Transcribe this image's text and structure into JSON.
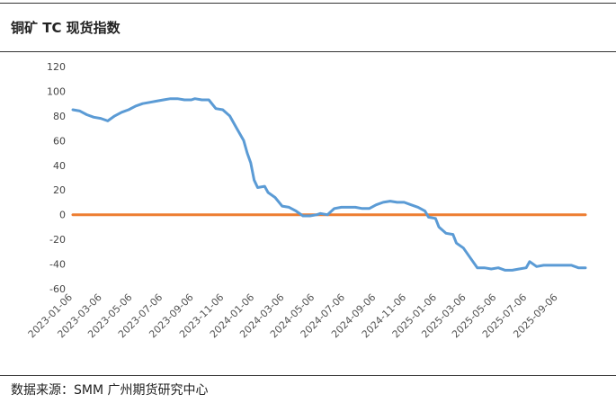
{
  "title": "铜矿 TC 现货指数",
  "source": "数据来源：SMM 广州期货研究中心",
  "colors": {
    "series": "#5b9bd5",
    "zero_line": "#ed7d31",
    "text": "#222222"
  },
  "chart_data": {
    "type": "line",
    "title": "铜矿 TC 现货指数",
    "xlabel": "",
    "ylabel": "",
    "ylim": [
      -60,
      120
    ],
    "yticks": [
      120,
      100,
      80,
      60,
      40,
      20,
      0,
      -20,
      -40,
      -60
    ],
    "xlim": [
      "2023-01-06",
      "2025-10-31"
    ],
    "xticks": [
      "2023-01-06",
      "2023-03-06",
      "2023-05-06",
      "2023-07-06",
      "2023-09-06",
      "2023-11-06",
      "2024-01-06",
      "2024-03-06",
      "2024-05-06",
      "2024-07-06",
      "2024-09-06",
      "2024-11-06",
      "2025-01-06",
      "2025-03-06",
      "2025-05-06",
      "2025-07-06",
      "2025-09-06"
    ],
    "grid": false,
    "legend": "none",
    "series": [
      {
        "points": [
          [
            "2023-01-06",
            85
          ],
          [
            "2023-01-20",
            84
          ],
          [
            "2023-02-03",
            81
          ],
          [
            "2023-02-17",
            79
          ],
          [
            "2023-03-03",
            78
          ],
          [
            "2023-03-10",
            77
          ],
          [
            "2023-03-17",
            76
          ],
          [
            "2023-03-31",
            80
          ],
          [
            "2023-04-14",
            83
          ],
          [
            "2023-04-28",
            85
          ],
          [
            "2023-05-12",
            88
          ],
          [
            "2023-05-26",
            90
          ],
          [
            "2023-06-09",
            91
          ],
          [
            "2023-06-23",
            92
          ],
          [
            "2023-07-07",
            93
          ],
          [
            "2023-07-21",
            94
          ],
          [
            "2023-08-04",
            94
          ],
          [
            "2023-08-18",
            93
          ],
          [
            "2023-09-01",
            93
          ],
          [
            "2023-09-08",
            94
          ],
          [
            "2023-09-22",
            93
          ],
          [
            "2023-10-06",
            93
          ],
          [
            "2023-10-20",
            86
          ],
          [
            "2023-11-03",
            85
          ],
          [
            "2023-11-17",
            80
          ],
          [
            "2023-12-01",
            70
          ],
          [
            "2023-12-15",
            60
          ],
          [
            "2023-12-22",
            50
          ],
          [
            "2023-12-29",
            42
          ],
          [
            "2024-01-05",
            28
          ],
          [
            "2024-01-12",
            22
          ],
          [
            "2024-01-26",
            23
          ],
          [
            "2024-02-02",
            18
          ],
          [
            "2024-02-16",
            14
          ],
          [
            "2024-03-01",
            7
          ],
          [
            "2024-03-15",
            6
          ],
          [
            "2024-03-29",
            3
          ],
          [
            "2024-04-12",
            -1
          ],
          [
            "2024-04-26",
            -1
          ],
          [
            "2024-05-10",
            0
          ],
          [
            "2024-05-17",
            1
          ],
          [
            "2024-05-31",
            0
          ],
          [
            "2024-06-14",
            5
          ],
          [
            "2024-06-28",
            6
          ],
          [
            "2024-07-12",
            6
          ],
          [
            "2024-07-26",
            6
          ],
          [
            "2024-08-09",
            5
          ],
          [
            "2024-08-23",
            5
          ],
          [
            "2024-09-06",
            8
          ],
          [
            "2024-09-20",
            10
          ],
          [
            "2024-10-04",
            11
          ],
          [
            "2024-10-18",
            10
          ],
          [
            "2024-11-01",
            10
          ],
          [
            "2024-11-15",
            8
          ],
          [
            "2024-11-29",
            6
          ],
          [
            "2024-12-13",
            3
          ],
          [
            "2024-12-20",
            -2
          ],
          [
            "2025-01-03",
            -3
          ],
          [
            "2025-01-10",
            -10
          ],
          [
            "2025-01-24",
            -15
          ],
          [
            "2025-02-07",
            -16
          ],
          [
            "2025-02-14",
            -23
          ],
          [
            "2025-02-28",
            -27
          ],
          [
            "2025-03-14",
            -35
          ],
          [
            "2025-03-28",
            -43
          ],
          [
            "2025-04-11",
            -43
          ],
          [
            "2025-04-25",
            -44
          ],
          [
            "2025-05-09",
            -43
          ],
          [
            "2025-05-23",
            -45
          ],
          [
            "2025-06-06",
            -45
          ],
          [
            "2025-06-20",
            -44
          ],
          [
            "2025-07-04",
            -43
          ],
          [
            "2025-07-11",
            -38
          ],
          [
            "2025-07-25",
            -42
          ],
          [
            "2025-08-08",
            -41
          ],
          [
            "2025-08-22",
            -41
          ],
          [
            "2025-09-05",
            -41
          ],
          [
            "2025-09-19",
            -41
          ],
          [
            "2025-10-03",
            -41
          ],
          [
            "2025-10-17",
            -43
          ],
          [
            "2025-10-31",
            -43
          ]
        ]
      },
      {
        "points": [
          [
            "2023-01-06",
            0
          ],
          [
            "2025-10-31",
            0
          ]
        ]
      }
    ]
  }
}
